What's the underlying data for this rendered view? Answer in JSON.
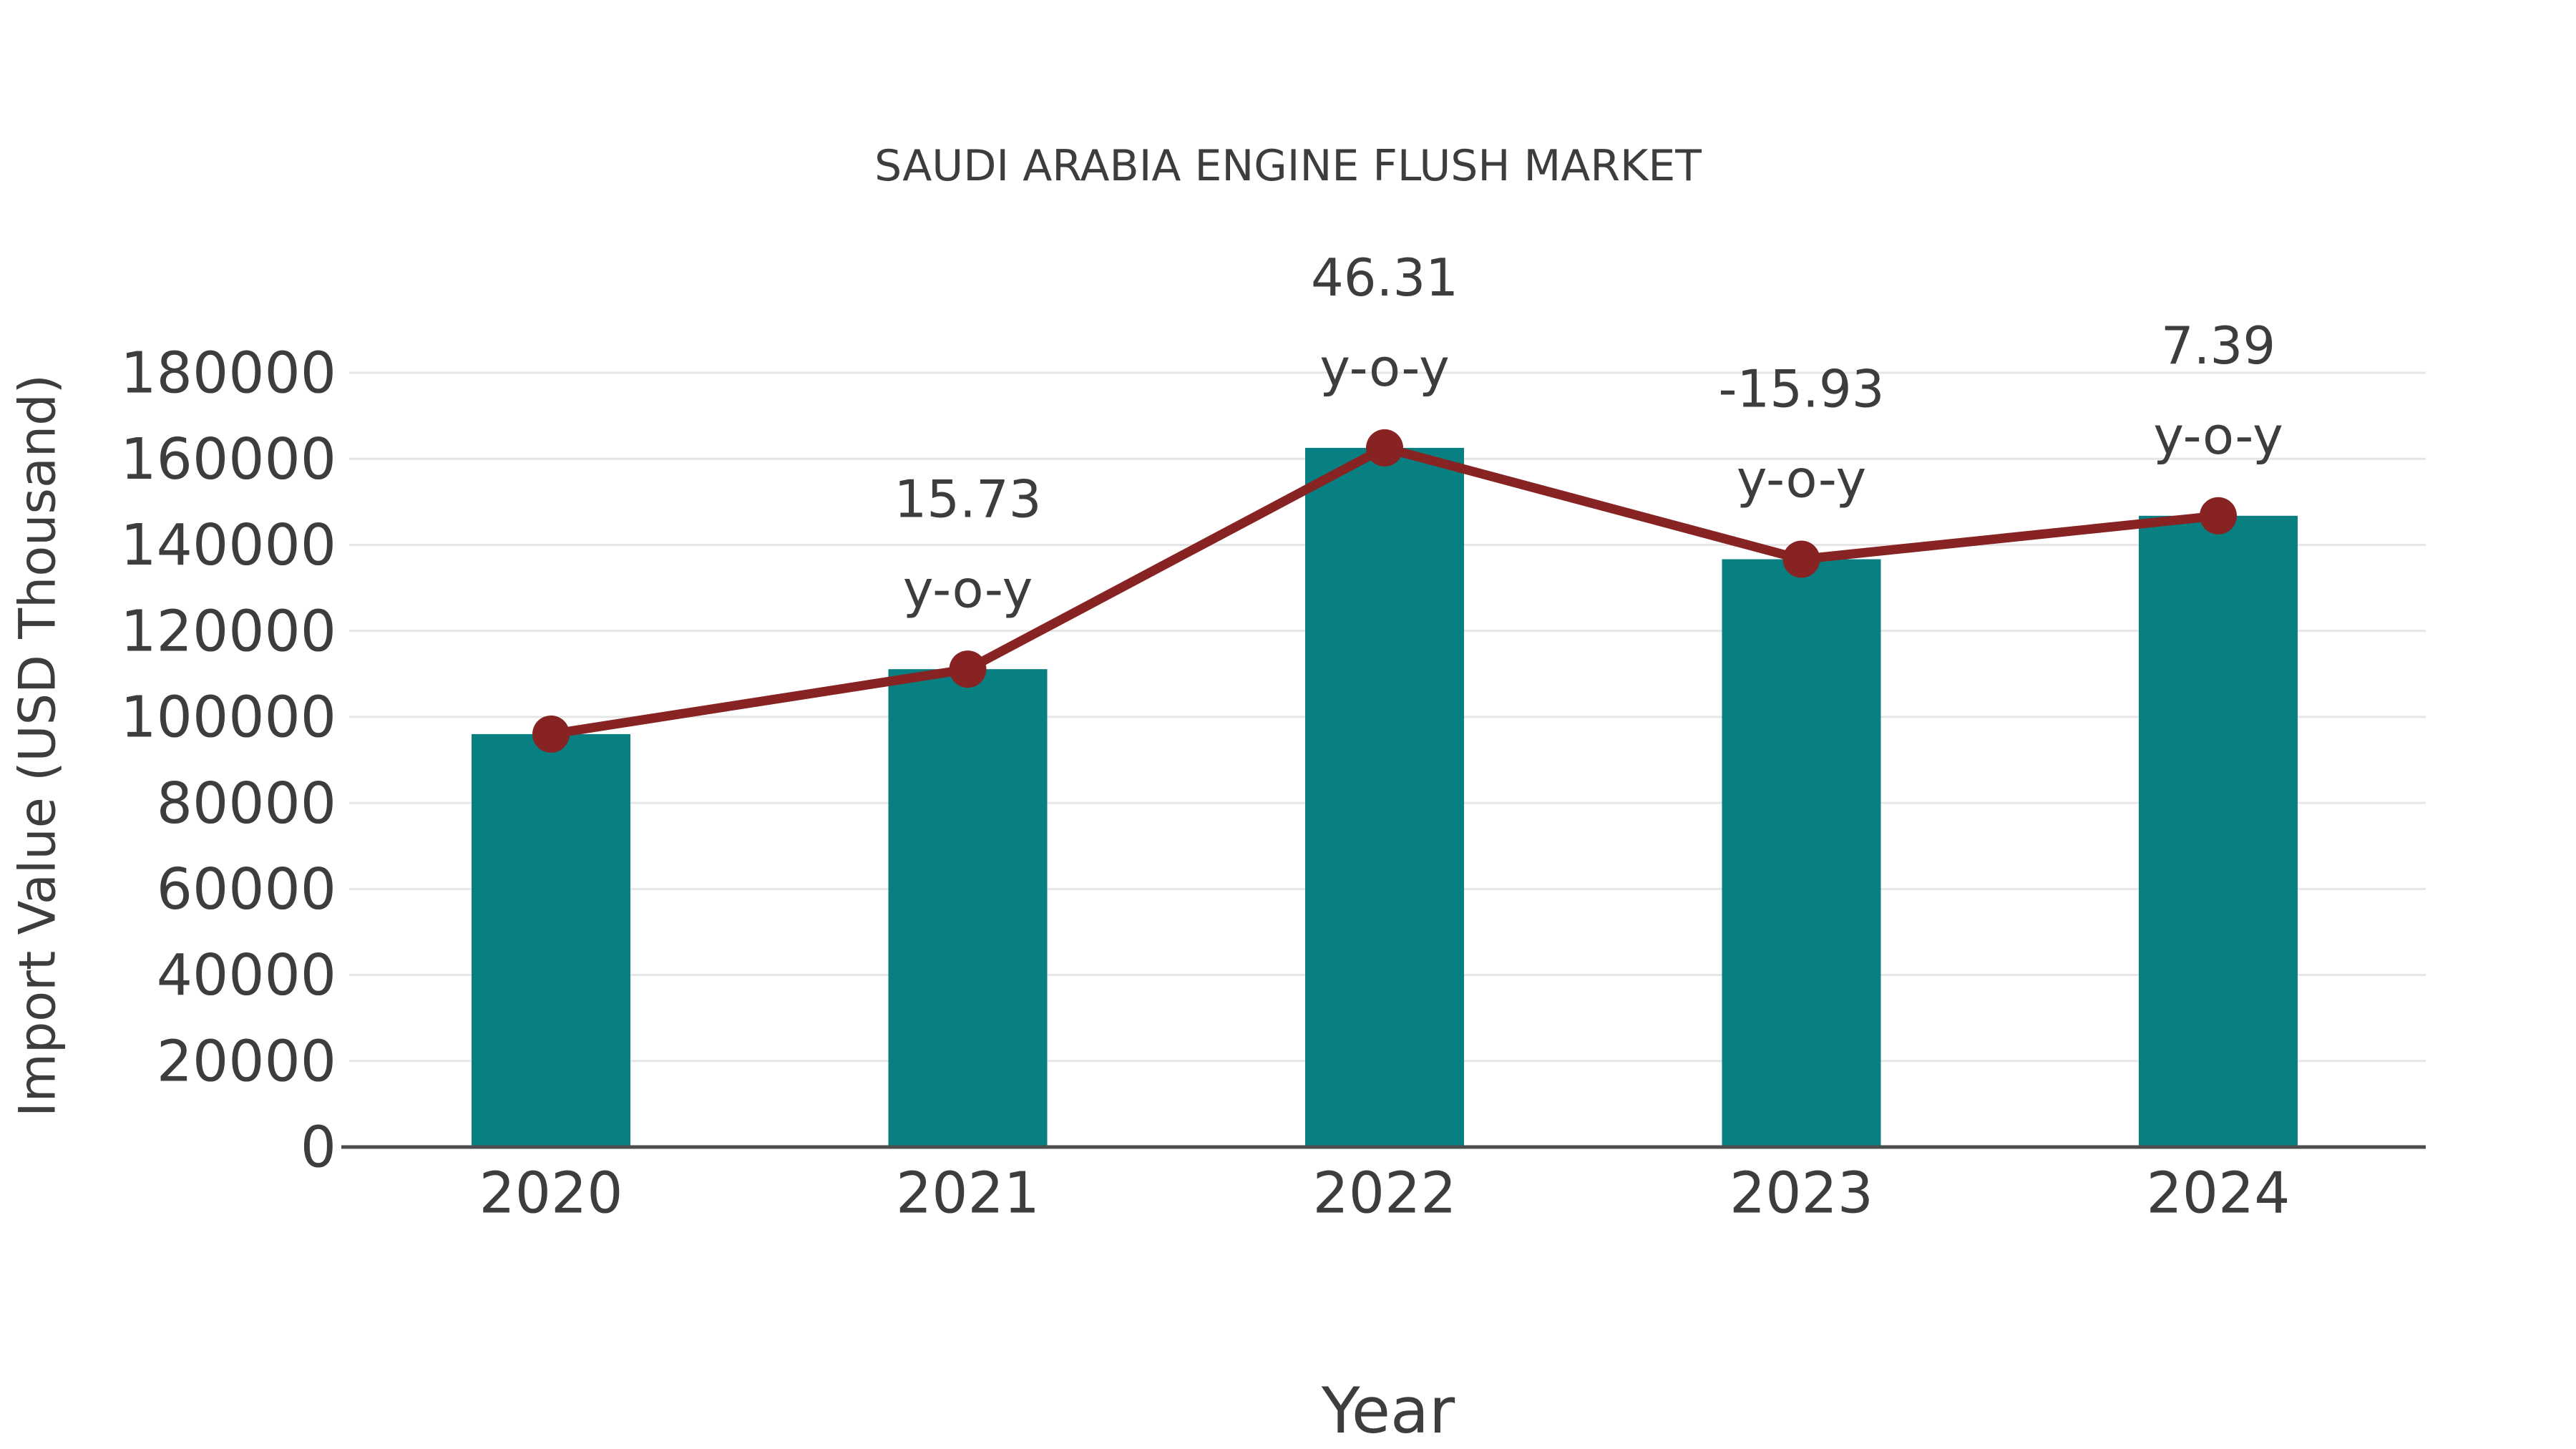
{
  "chart_data": {
    "type": "bar",
    "combo": "bar+line",
    "title": "SAUDI ARABIA ENGINE FLUSH MARKET",
    "xlabel": "Year",
    "ylabel": "Import Value (USD Thousand)",
    "categories": [
      "2020",
      "2021",
      "2022",
      "2023",
      "2024"
    ],
    "series": [
      {
        "name": "import-value-bars",
        "type": "bar",
        "values": [
          96000,
          111100,
          162550,
          136660,
          146760
        ]
      },
      {
        "name": "yoy-line",
        "type": "line",
        "values": [
          96000,
          111100,
          162550,
          136660,
          146760
        ]
      }
    ],
    "yoy_percent": [
      null,
      15.73,
      46.31,
      -15.93,
      7.39
    ],
    "annotations": [
      {
        "category": "2021",
        "value_label": "15.73",
        "unit_label": "y-o-y"
      },
      {
        "category": "2022",
        "value_label": "46.31",
        "unit_label": "y-o-y"
      },
      {
        "category": "2023",
        "value_label": "-15.93",
        "unit_label": "y-o-y"
      },
      {
        "category": "2024",
        "value_label": "7.39",
        "unit_label": "y-o-y"
      }
    ],
    "y_ticks": [
      "0",
      "20000",
      "40000",
      "60000",
      "80000",
      "100000",
      "120000",
      "140000",
      "160000",
      "180000"
    ],
    "y_tick_values": [
      0,
      20000,
      40000,
      60000,
      80000,
      100000,
      120000,
      140000,
      160000,
      180000
    ],
    "ylim": [
      0,
      180000
    ],
    "grid": "horizontal",
    "legend": "none",
    "colors": {
      "bar": "#088081",
      "line": "#872323",
      "text": "#3d3d3d",
      "grid": "#e6e6e6",
      "axis": "#4d4d4d",
      "background": "#ffffff"
    }
  }
}
